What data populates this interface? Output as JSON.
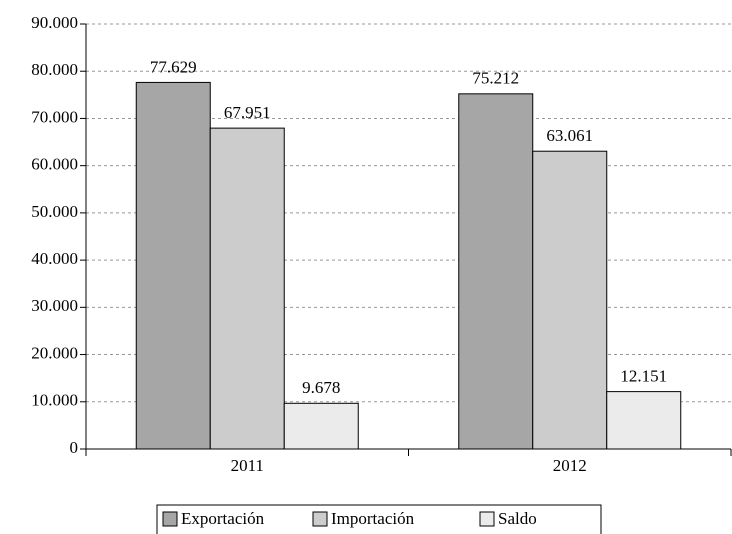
{
  "chart_data": {
    "type": "bar",
    "categories": [
      "2011",
      "2012"
    ],
    "series": [
      {
        "name": "Exportación",
        "color": "#a6a6a6",
        "values": [
          77629,
          75212
        ],
        "value_labels": [
          "77.629",
          "75.212"
        ]
      },
      {
        "name": "Importación",
        "color": "#cccccc",
        "values": [
          67951,
          63061
        ],
        "value_labels": [
          "67.951",
          "63.061"
        ]
      },
      {
        "name": "Saldo",
        "color": "#ebebeb",
        "values": [
          9678,
          12151
        ],
        "value_labels": [
          "9.678",
          "12.151"
        ]
      }
    ],
    "ylim": [
      0,
      90000
    ],
    "yticks": [
      0,
      {
        "value": 10000,
        "label": "10.000"
      },
      {
        "value": 20000,
        "label": "20.000"
      },
      {
        "value": 30000,
        "label": "30.000"
      },
      {
        "value": 40000,
        "label": "40.000"
      },
      {
        "value": 50000,
        "label": "50.000"
      },
      {
        "value": 60000,
        "label": "60.000"
      },
      {
        "value": 70000,
        "label": "70.000"
      },
      {
        "value": 80000,
        "label": "80.000"
      },
      {
        "value": 90000,
        "label": "90.000"
      }
    ],
    "grid": true,
    "legend": "bottom"
  }
}
